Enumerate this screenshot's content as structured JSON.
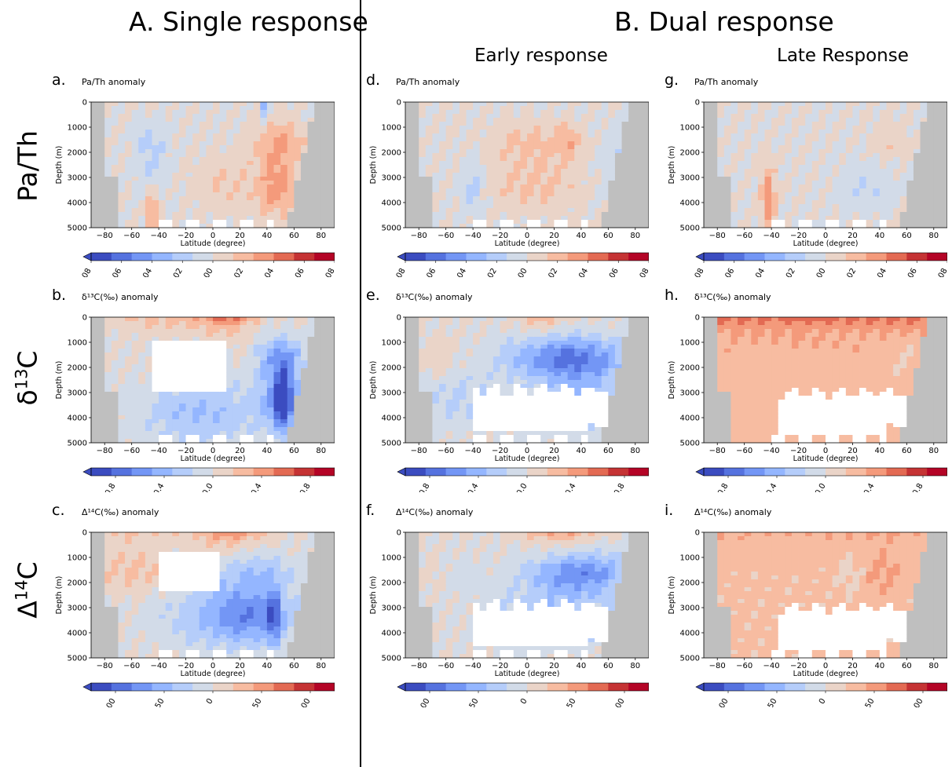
{
  "headers": {
    "single": "A. Single response",
    "dual": "B. Dual response",
    "early": "Early response",
    "late": "Late Response"
  },
  "row_labels": [
    {
      "main": "Pa/Th",
      "sup": ""
    },
    {
      "main": "δ",
      "sup": "13",
      "tail": "C"
    },
    {
      "main": "Δ",
      "sup": "14",
      "tail": "C"
    }
  ],
  "colors": {
    "land": "#bfbfbf",
    "diverging": [
      "#3b4cc0",
      "#5572df",
      "#7396f5",
      "#94b6ff",
      "#b5cdfa",
      "#d2dbe8",
      "#ead4c8",
      "#f7bca1",
      "#f49a7b",
      "#e36a53",
      "#c53334",
      "#b40426"
    ]
  },
  "chart_data": [
    {
      "letter": "a.",
      "title": "Pa/Th anomaly",
      "type": "heatmap",
      "xlabel": "Latitude (degree)",
      "ylabel": "Depth (m)",
      "xlim": [
        -90,
        90
      ],
      "ylim": [
        5000,
        0
      ],
      "xticks": [
        -80,
        -60,
        -40,
        -20,
        0,
        20,
        40,
        60,
        80
      ],
      "yticks": [
        0,
        1000,
        2000,
        3000,
        4000,
        5000
      ],
      "cbar_ticks": [
        "−0.08",
        "−0.06",
        "−0.04",
        "−0.02",
        "0.00",
        "0.02",
        "0.04",
        "0.06",
        "0.08"
      ],
      "cbar_range": [
        -0.08,
        0.08
      ],
      "variable": "pa",
      "period": "single"
    },
    {
      "letter": "b.",
      "title": "δ¹³C(‰) anomaly",
      "type": "heatmap",
      "xlabel": "Latitude (degree)",
      "ylabel": "Depth (m)",
      "xlim": [
        -90,
        90
      ],
      "ylim": [
        5000,
        0
      ],
      "xticks": [
        -80,
        -60,
        -40,
        -20,
        0,
        20,
        40,
        60,
        80
      ],
      "yticks": [
        0,
        1000,
        2000,
        3000,
        4000,
        5000
      ],
      "cbar_ticks": [
        "−0.8",
        "−0.4",
        "0.0",
        "0.4",
        "0.8"
      ],
      "cbar_range": [
        -1,
        1
      ],
      "variable": "c13",
      "period": "single"
    },
    {
      "letter": "c.",
      "title": "Δ¹⁴C(‰) anomaly",
      "type": "heatmap",
      "xlabel": "Latitude (degree)",
      "ylabel": "Depth (m)",
      "xlim": [
        -90,
        90
      ],
      "ylim": [
        5000,
        0
      ],
      "xticks": [
        -80,
        -60,
        -40,
        -20,
        0,
        20,
        40,
        60,
        80
      ],
      "yticks": [
        0,
        1000,
        2000,
        3000,
        4000,
        5000
      ],
      "cbar_ticks": [
        "−100",
        "−50",
        "0",
        "50",
        "100"
      ],
      "cbar_range": [
        -125,
        125
      ],
      "variable": "c14",
      "period": "single"
    },
    {
      "letter": "d.",
      "title": "Pa/Th anomaly",
      "type": "heatmap",
      "xlabel": "Latitude (degree)",
      "ylabel": "Depth (m)",
      "xlim": [
        -90,
        90
      ],
      "ylim": [
        5000,
        0
      ],
      "xticks": [
        -80,
        -60,
        -40,
        -20,
        0,
        20,
        40,
        60,
        80
      ],
      "yticks": [
        0,
        1000,
        2000,
        3000,
        4000,
        5000
      ],
      "cbar_ticks": [
        "−0.08",
        "−0.06",
        "−0.04",
        "−0.02",
        "0.00",
        "0.02",
        "0.04",
        "0.06",
        "0.08"
      ],
      "cbar_range": [
        -0.08,
        0.08
      ],
      "variable": "pa",
      "period": "early"
    },
    {
      "letter": "e.",
      "title": "δ¹³C(‰) anomaly",
      "type": "heatmap",
      "xlabel": "Latitude (degree)",
      "ylabel": "Depth (m)",
      "xlim": [
        -90,
        90
      ],
      "ylim": [
        5000,
        0
      ],
      "xticks": [
        -80,
        -60,
        -40,
        -20,
        0,
        20,
        40,
        60,
        80
      ],
      "yticks": [
        0,
        1000,
        2000,
        3000,
        4000,
        5000
      ],
      "cbar_ticks": [
        "−0.8",
        "−0.4",
        "0.0",
        "0.4",
        "0.8"
      ],
      "cbar_range": [
        -1,
        1
      ],
      "variable": "c13",
      "period": "early"
    },
    {
      "letter": "f.",
      "title": "Δ¹⁴C(‰) anomaly",
      "type": "heatmap",
      "xlabel": "Latitude (degree)",
      "ylabel": "Depth (m)",
      "xlim": [
        -90,
        90
      ],
      "ylim": [
        5000,
        0
      ],
      "xticks": [
        -80,
        -60,
        -40,
        -20,
        0,
        20,
        40,
        60,
        80
      ],
      "yticks": [
        0,
        1000,
        2000,
        3000,
        4000,
        5000
      ],
      "cbar_ticks": [
        "−100",
        "−50",
        "0",
        "50",
        "100"
      ],
      "cbar_range": [
        -125,
        125
      ],
      "variable": "c14",
      "period": "early"
    },
    {
      "letter": "g.",
      "title": "Pa/Th anomaly",
      "type": "heatmap",
      "xlabel": "Latitude (degree)",
      "ylabel": "Depth (m)",
      "xlim": [
        -90,
        90
      ],
      "ylim": [
        5000,
        0
      ],
      "xticks": [
        -80,
        -60,
        -40,
        -20,
        0,
        20,
        40,
        60,
        80
      ],
      "yticks": [
        0,
        1000,
        2000,
        3000,
        4000,
        5000
      ],
      "cbar_ticks": [
        "−0.08",
        "−0.06",
        "−0.04",
        "−0.02",
        "0.00",
        "0.02",
        "0.04",
        "0.06",
        "0.08"
      ],
      "cbar_range": [
        -0.08,
        0.08
      ],
      "variable": "pa",
      "period": "late"
    },
    {
      "letter": "h.",
      "title": "δ¹³C(‰) anomaly",
      "type": "heatmap",
      "xlabel": "Latitude (degree)",
      "ylabel": "Depth (m)",
      "xlim": [
        -90,
        90
      ],
      "ylim": [
        5000,
        0
      ],
      "xticks": [
        -80,
        -60,
        -40,
        -20,
        0,
        20,
        40,
        60,
        80
      ],
      "yticks": [
        0,
        1000,
        2000,
        3000,
        4000,
        5000
      ],
      "cbar_ticks": [
        "−0.8",
        "−0.4",
        "0.0",
        "0.4",
        "0.8"
      ],
      "cbar_range": [
        -1,
        1
      ],
      "variable": "c13",
      "period": "late"
    },
    {
      "letter": "i.",
      "title": "Δ¹⁴C(‰) anomaly",
      "type": "heatmap",
      "xlabel": "Latitude (degree)",
      "ylabel": "Depth (m)",
      "xlim": [
        -90,
        90
      ],
      "ylim": [
        5000,
        0
      ],
      "xticks": [
        -80,
        -60,
        -40,
        -20,
        0,
        20,
        40,
        60,
        80
      ],
      "yticks": [
        0,
        1000,
        2000,
        3000,
        4000,
        5000
      ],
      "cbar_ticks": [
        "−100",
        "−50",
        "0",
        "50",
        "100"
      ],
      "cbar_range": [
        -125,
        125
      ],
      "variable": "c14",
      "period": "late"
    }
  ]
}
